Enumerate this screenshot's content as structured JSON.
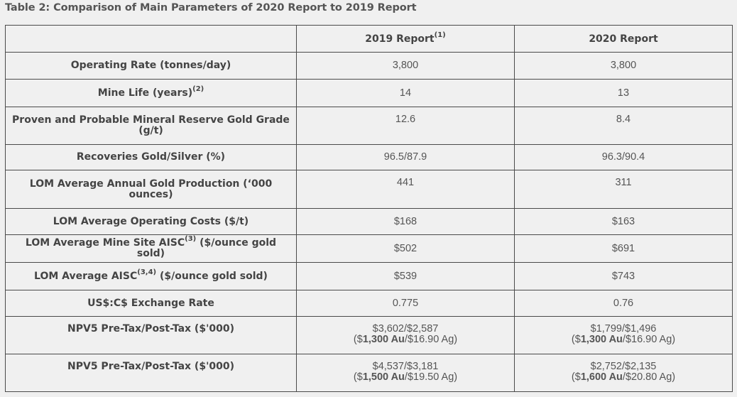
{
  "caption": "Table 2: Comparison of Main Parameters of 2020 Report to 2019 Report",
  "headers": {
    "col1": "",
    "col2": "2019 Report",
    "col2_sup": "(1)",
    "col3": "2020 Report"
  },
  "rows": [
    {
      "param": "Operating Rate (tonnes/day)",
      "v2019": "3,800",
      "v2020": "3,800"
    },
    {
      "param": "Mine Life (years)",
      "param_sup": "(2)",
      "v2019": "14",
      "v2020": "13"
    },
    {
      "param": "Proven and Probable Mineral Reserve Gold Grade (g/t)",
      "v2019": "12.6",
      "v2020": "8.4"
    },
    {
      "param": "Recoveries Gold/Silver (%)",
      "v2019": "96.5/87.9",
      "v2020": "96.3/90.4"
    },
    {
      "param": "LOM Average Annual Gold Production (‘000 ounces)",
      "v2019": "441",
      "v2020": "311"
    },
    {
      "param": "LOM Average Operating Costs ($/t)",
      "v2019": "$168",
      "v2020": "$163"
    },
    {
      "param_a": "LOM Average Mine Site AISC",
      "param_sup": "(3)",
      "param_b": " ($/ounce gold sold)",
      "v2019": "$502",
      "v2020": "$691"
    },
    {
      "param_a": "LOM Average AISC",
      "param_sup": "(3,4)",
      "param_b": " ($/ounce gold sold)",
      "v2019": "$539",
      "v2020": "$743"
    },
    {
      "param": "US$:C$ Exchange Rate",
      "v2019": "0.775",
      "v2020": "0.76"
    },
    {
      "param": "NPV5 Pre-Tax/Post-Tax ($'000)",
      "v2019": {
        "line1": "$3,602/$2,587",
        "open": "($",
        "bold": "1,300 Au",
        "rest": "/$16.90 Ag)"
      },
      "v2020": {
        "line1": "$1,799/$1,496",
        "open": "($",
        "bold": "1,300 Au",
        "rest": "/$16.90 Ag)"
      }
    },
    {
      "param": "NPV5 Pre-Tax/Post-Tax ($'000)",
      "v2019": {
        "line1": "$4,537/$3,181",
        "open": "($",
        "bold": "1,500 Au",
        "rest": "/$19.50 Ag)"
      },
      "v2020": {
        "line1": "$2,752/$2,135",
        "open": "($",
        "bold": "1,600 Au",
        "rest": "/$20.80 Ag)"
      }
    }
  ]
}
